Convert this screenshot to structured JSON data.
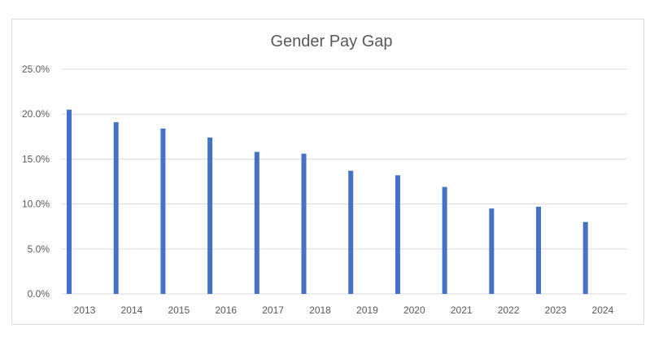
{
  "chart_data": {
    "type": "bar",
    "title": "Gender Pay Gap",
    "xlabel": "",
    "ylabel": "",
    "categories": [
      "2013",
      "2014",
      "2015",
      "2016",
      "2017",
      "2018",
      "2019",
      "2020",
      "2021",
      "2022",
      "2023",
      "2024"
    ],
    "values": [
      20.5,
      19.1,
      18.4,
      17.4,
      15.8,
      15.6,
      13.7,
      13.2,
      11.9,
      9.5,
      9.7,
      8.0
    ],
    "ylim": [
      0,
      25
    ],
    "yticks": [
      "0.0%",
      "5.0%",
      "10.0%",
      "15.0%",
      "20.0%",
      "25.0%"
    ],
    "grid": true,
    "legend": "none",
    "bar_color": "#4472c4",
    "grid_color": "#d9d9d9"
  }
}
